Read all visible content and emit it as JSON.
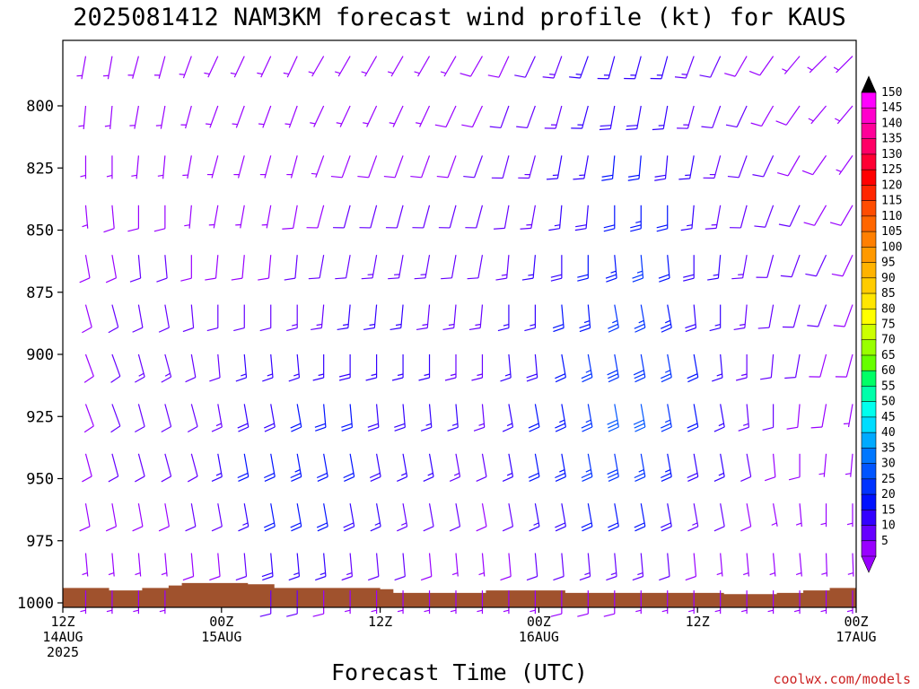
{
  "title": "2025081412 NAM3KM forecast wind profile (kt) for KAUS",
  "xlabel": "Forecast Time (UTC)",
  "credit": "coolwx.com/models",
  "colors": {
    "terrain": "#a0522d",
    "credit": "#cc2222",
    "frame": "#000000"
  },
  "chart_data": {
    "type": "wind-barb-profile",
    "title": "2025081412 NAM3KM forecast wind profile (kt) for KAUS",
    "xlabel": "Forecast Time (UTC)",
    "ylabel": "",
    "x_range_hours": [
      0,
      60
    ],
    "y_axis": {
      "ylim": [
        1000,
        775
      ],
      "inverted": true
    },
    "x_ticks": [
      {
        "hour": 0,
        "lines": [
          "12Z",
          "14AUG",
          "2025"
        ]
      },
      {
        "hour": 12,
        "lines": [
          "00Z",
          "15AUG"
        ]
      },
      {
        "hour": 24,
        "lines": [
          "12Z"
        ]
      },
      {
        "hour": 36,
        "lines": [
          "00Z",
          "16AUG"
        ]
      },
      {
        "hour": 48,
        "lines": [
          "12Z"
        ]
      },
      {
        "hour": 60,
        "lines": [
          "00Z",
          "17AUG"
        ]
      }
    ],
    "y_ticks": [
      800,
      825,
      850,
      875,
      900,
      925,
      950,
      975,
      1000
    ],
    "barb_levels_hpa": [
      780,
      800,
      820,
      840,
      860,
      880,
      900,
      920,
      940,
      960,
      980,
      995
    ],
    "barb_times_hours": [
      2,
      4,
      6,
      8,
      10,
      12,
      14,
      16,
      18,
      20,
      22,
      24,
      26,
      28,
      30,
      32,
      34,
      36,
      38,
      40,
      42,
      44,
      46,
      48,
      50,
      52,
      54,
      56,
      58,
      60
    ],
    "surface_pressure_hpa": [
      [
        0,
        994
      ],
      [
        3,
        994
      ],
      [
        3.5,
        995
      ],
      [
        6,
        994
      ],
      [
        8,
        993
      ],
      [
        9,
        992
      ],
      [
        14,
        992.5
      ],
      [
        16,
        994
      ],
      [
        20,
        994
      ],
      [
        24,
        994.5
      ],
      [
        25,
        996
      ],
      [
        30,
        996
      ],
      [
        32,
        995
      ],
      [
        36,
        995
      ],
      [
        38,
        996
      ],
      [
        42,
        996
      ],
      [
        46,
        996
      ],
      [
        50,
        996.5
      ],
      [
        54,
        996
      ],
      [
        56,
        995
      ],
      [
        58,
        994
      ],
      [
        60,
        993
      ]
    ],
    "wind_speed_kt": [
      [
        5,
        5,
        6,
        7,
        8,
        8,
        8,
        8,
        8,
        8,
        7,
        5
      ],
      [
        5,
        5,
        6,
        8,
        9,
        10,
        11,
        12,
        10,
        8,
        6,
        5
      ],
      [
        5,
        5,
        6,
        8,
        10,
        12,
        13,
        12,
        10,
        8,
        6,
        5
      ],
      [
        5,
        5,
        6,
        8,
        10,
        12,
        13,
        12,
        10,
        8,
        6,
        5
      ],
      [
        5,
        5,
        6,
        7,
        9,
        10,
        11,
        12,
        12,
        10,
        8,
        5
      ],
      [
        5,
        5,
        6,
        7,
        9,
        10,
        12,
        14,
        15,
        12,
        9,
        6
      ],
      [
        5,
        5,
        6,
        7,
        9,
        12,
        15,
        18,
        20,
        17,
        12,
        8
      ],
      [
        5,
        5,
        6,
        7,
        9,
        12,
        15,
        18,
        22,
        22,
        18,
        12
      ],
      [
        5,
        5,
        6,
        8,
        10,
        13,
        16,
        20,
        23,
        22,
        17,
        11
      ],
      [
        5,
        6,
        7,
        9,
        11,
        14,
        17,
        21,
        22,
        20,
        15,
        9
      ],
      [
        6,
        7,
        8,
        10,
        12,
        15,
        18,
        21,
        21,
        18,
        13,
        7
      ],
      [
        6,
        7,
        9,
        11,
        13,
        15,
        17,
        19,
        19,
        16,
        12,
        7
      ],
      [
        6,
        7,
        9,
        11,
        13,
        15,
        17,
        18,
        17,
        14,
        10,
        6
      ],
      [
        6,
        7,
        9,
        11,
        13,
        14,
        15,
        16,
        15,
        12,
        8,
        5
      ],
      [
        7,
        8,
        9,
        11,
        12,
        13,
        14,
        15,
        13,
        10,
        7,
        5
      ],
      [
        8,
        9,
        10,
        11,
        12,
        13,
        14,
        14,
        12,
        9,
        7,
        5
      ],
      [
        9,
        10,
        11,
        12,
        13,
        15,
        16,
        17,
        16,
        12,
        9,
        6
      ],
      [
        11,
        12,
        13,
        14,
        15,
        17,
        19,
        21,
        20,
        16,
        11,
        7
      ],
      [
        13,
        14,
        15,
        16,
        18,
        20,
        22,
        24,
        23,
        18,
        12,
        8
      ],
      [
        15,
        16,
        17,
        19,
        21,
        23,
        25,
        27,
        26,
        20,
        13,
        8
      ],
      [
        16,
        18,
        20,
        22,
        24,
        26,
        28,
        30,
        28,
        22,
        14,
        8
      ],
      [
        17,
        19,
        21,
        23,
        25,
        27,
        29,
        30,
        27,
        21,
        13,
        7
      ],
      [
        15,
        17,
        19,
        21,
        22,
        24,
        26,
        27,
        24,
        18,
        11,
        6
      ],
      [
        13,
        14,
        15,
        17,
        18,
        19,
        20,
        21,
        19,
        14,
        9,
        5
      ],
      [
        11,
        12,
        13,
        14,
        15,
        16,
        17,
        17,
        15,
        11,
        7,
        5
      ],
      [
        9,
        10,
        11,
        12,
        13,
        14,
        14,
        13,
        11,
        8,
        6,
        5
      ],
      [
        8,
        9,
        10,
        11,
        12,
        12,
        12,
        11,
        9,
        7,
        5,
        5
      ],
      [
        7,
        8,
        9,
        10,
        11,
        11,
        10,
        9,
        8,
        6,
        5,
        5
      ],
      [
        6,
        7,
        8,
        9,
        10,
        10,
        9,
        8,
        7,
        6,
        5,
        5
      ],
      [
        6,
        7,
        7,
        8,
        9,
        9,
        8,
        7,
        6,
        5,
        5,
        5
      ]
    ],
    "wind_dir_deg": [
      [
        190,
        185,
        180,
        175,
        170,
        165,
        160,
        160,
        165,
        170,
        175,
        180
      ],
      [
        190,
        185,
        180,
        175,
        170,
        165,
        160,
        160,
        165,
        170,
        175,
        180
      ],
      [
        195,
        190,
        185,
        180,
        175,
        170,
        165,
        165,
        165,
        170,
        175,
        180
      ],
      [
        195,
        190,
        185,
        180,
        175,
        170,
        165,
        165,
        165,
        170,
        175,
        180
      ],
      [
        200,
        195,
        190,
        185,
        180,
        175,
        170,
        165,
        165,
        170,
        175,
        180
      ],
      [
        205,
        200,
        195,
        190,
        185,
        180,
        175,
        170,
        170,
        170,
        175,
        180
      ],
      [
        205,
        200,
        195,
        190,
        185,
        180,
        175,
        170,
        170,
        170,
        175,
        180
      ],
      [
        205,
        200,
        195,
        190,
        185,
        180,
        175,
        170,
        170,
        170,
        175,
        180
      ],
      [
        205,
        200,
        195,
        190,
        185,
        180,
        175,
        170,
        170,
        170,
        175,
        180
      ],
      [
        210,
        205,
        200,
        195,
        190,
        185,
        180,
        175,
        170,
        170,
        175,
        180
      ],
      [
        210,
        205,
        200,
        195,
        190,
        185,
        180,
        175,
        170,
        170,
        175,
        180
      ],
      [
        210,
        205,
        200,
        195,
        190,
        185,
        180,
        175,
        170,
        170,
        175,
        180
      ],
      [
        210,
        205,
        200,
        195,
        190,
        185,
        180,
        175,
        170,
        170,
        175,
        180
      ],
      [
        210,
        205,
        200,
        195,
        190,
        185,
        180,
        175,
        170,
        170,
        175,
        180
      ],
      [
        210,
        205,
        200,
        195,
        190,
        185,
        180,
        175,
        170,
        170,
        175,
        180
      ],
      [
        210,
        205,
        200,
        195,
        190,
        185,
        180,
        175,
        170,
        170,
        175,
        180
      ],
      [
        205,
        200,
        195,
        190,
        185,
        180,
        175,
        170,
        170,
        170,
        175,
        180
      ],
      [
        205,
        200,
        195,
        190,
        185,
        180,
        175,
        170,
        170,
        170,
        175,
        180
      ],
      [
        200,
        195,
        190,
        185,
        180,
        175,
        170,
        170,
        170,
        170,
        175,
        180
      ],
      [
        200,
        195,
        190,
        185,
        180,
        175,
        170,
        170,
        170,
        170,
        175,
        180
      ],
      [
        195,
        190,
        185,
        180,
        175,
        170,
        170,
        170,
        170,
        170,
        175,
        180
      ],
      [
        195,
        190,
        185,
        180,
        175,
        170,
        170,
        170,
        170,
        170,
        175,
        180
      ],
      [
        195,
        190,
        185,
        180,
        175,
        170,
        170,
        170,
        170,
        170,
        175,
        180
      ],
      [
        200,
        195,
        190,
        185,
        180,
        175,
        170,
        170,
        170,
        170,
        175,
        180
      ],
      [
        205,
        200,
        195,
        190,
        185,
        180,
        175,
        170,
        170,
        170,
        175,
        180
      ],
      [
        210,
        205,
        200,
        195,
        190,
        185,
        180,
        175,
        170,
        170,
        175,
        180
      ],
      [
        215,
        210,
        205,
        200,
        195,
        190,
        185,
        180,
        175,
        170,
        175,
        180
      ],
      [
        220,
        215,
        210,
        205,
        200,
        195,
        190,
        185,
        180,
        175,
        175,
        180
      ],
      [
        225,
        220,
        215,
        210,
        205,
        200,
        195,
        190,
        185,
        180,
        178,
        180
      ],
      [
        225,
        220,
        215,
        210,
        205,
        200,
        195,
        190,
        185,
        180,
        178,
        180
      ]
    ],
    "colorbar": {
      "unit": "kt",
      "labels": [
        150,
        145,
        140,
        135,
        130,
        125,
        120,
        115,
        110,
        105,
        100,
        95,
        90,
        85,
        80,
        75,
        70,
        65,
        60,
        55,
        50,
        45,
        40,
        35,
        30,
        25,
        20,
        15,
        10,
        5
      ],
      "colors": [
        "#ff00ff",
        "#ff00cc",
        "#ff0099",
        "#ff0066",
        "#ff0033",
        "#ff0000",
        "#ff2600",
        "#ff4c00",
        "#ff6600",
        "#ff7f00",
        "#ff9900",
        "#ffb300",
        "#ffcc00",
        "#ffe600",
        "#ffff00",
        "#ccff00",
        "#99ff00",
        "#66ff00",
        "#00ff66",
        "#00ffaa",
        "#00ffee",
        "#00ddff",
        "#00aaff",
        "#0077ff",
        "#0055ff",
        "#0033ff",
        "#0011ff",
        "#3300ff",
        "#6600ff",
        "#9900ff"
      ],
      "top_arrow_color": "#000000",
      "bottom_arrow_color": "#9900ff"
    }
  }
}
